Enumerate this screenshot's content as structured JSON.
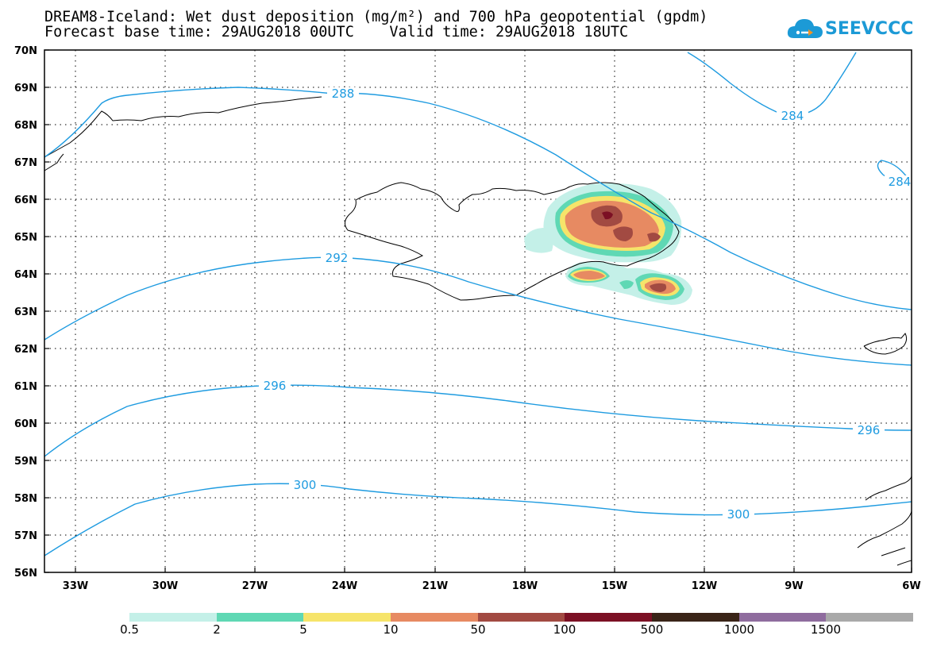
{
  "header": {
    "title": "DREAM8-Iceland: Wet dust deposition (mg/m²) and 700 hPa geopotential (gpdm)",
    "forecast_base": "Forecast base time: 29AUG2018 00UTC",
    "valid_time": "Valid time: 29AUG2018 18UTC"
  },
  "logo": {
    "text": "SEEVCCC",
    "color": "#1c9ad6"
  },
  "map": {
    "lon_range": [
      -34,
      -6
    ],
    "lat_range": [
      56,
      70
    ],
    "lat_labels": [
      "70N",
      "69N",
      "68N",
      "67N",
      "66N",
      "65N",
      "64N",
      "63N",
      "62N",
      "61N",
      "60N",
      "59N",
      "58N",
      "57N",
      "56N"
    ],
    "lon_labels": [
      "33W",
      "30W",
      "27W",
      "24W",
      "21W",
      "18W",
      "15W",
      "12W",
      "9W",
      "6W"
    ],
    "gridlines": "dotted",
    "contour_color": "#1e9be0",
    "contour_labels": [
      "288",
      "284",
      "284",
      "292",
      "296",
      "296",
      "300",
      "300"
    ]
  },
  "legend": {
    "colors": [
      "#c4f0e8",
      "#5fd8b4",
      "#f6e46a",
      "#e78a62",
      "#a24a42",
      "#7c1024",
      "#3a2418",
      "#8f6c9e",
      "#a9a9a9"
    ],
    "labels": [
      "0.5",
      "2",
      "5",
      "10",
      "50",
      "100",
      "500",
      "1000",
      "1500"
    ]
  }
}
